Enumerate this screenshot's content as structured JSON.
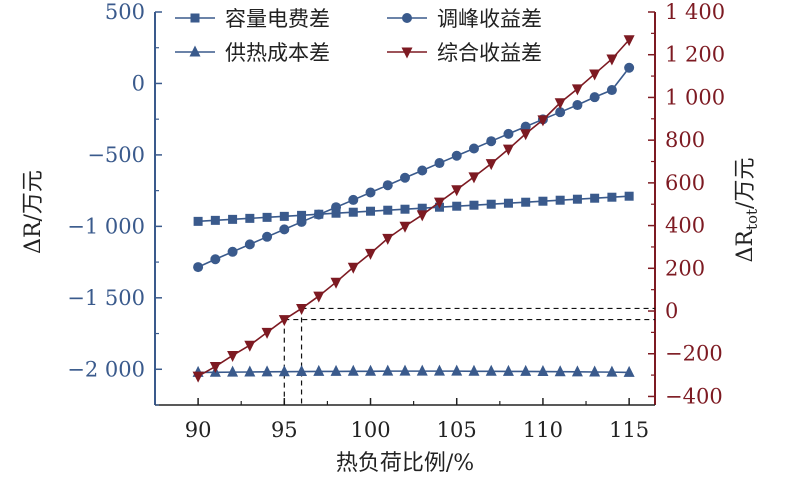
{
  "chart_data": {
    "type": "line",
    "xlabel": "热负荷比例/%",
    "ylabel_left": "ΔR/万元",
    "ylabel_right_main": "ΔR",
    "ylabel_right_sub": "tot",
    "ylabel_right_unit": "/万元",
    "x": [
      90,
      91,
      92,
      93,
      94,
      95,
      96,
      97,
      98,
      99,
      100,
      101,
      102,
      103,
      104,
      105,
      106,
      107,
      108,
      109,
      110,
      111,
      112,
      113,
      114,
      115
    ],
    "xlim": [
      87.5,
      116.5
    ],
    "xticks": [
      90,
      95,
      100,
      105,
      110,
      115
    ],
    "xtick_labels": [
      "90",
      "95",
      "100",
      "105",
      "110",
      "115"
    ],
    "ylim_left": [
      -2250,
      500
    ],
    "yticks_left": [
      500,
      0,
      -500,
      -1000,
      -1500,
      -2000
    ],
    "ytick_labels_left": [
      "500",
      "0",
      "−500",
      "−1 000",
      "−1 500",
      "−2 000"
    ],
    "ylim_right": [
      -440,
      1400
    ],
    "yticks_right": [
      1400,
      1200,
      1000,
      800,
      600,
      400,
      200,
      0,
      -200,
      -400
    ],
    "ytick_labels_right": [
      "1 400",
      "1 200",
      "1 000",
      "800",
      "600",
      "400",
      "200",
      "0",
      "−200",
      "−400"
    ],
    "series": [
      {
        "name": "容量电费差",
        "axis": "left",
        "marker": "square",
        "color": "#3a5a8c",
        "values": [
          -965,
          -958,
          -951,
          -944,
          -937,
          -930,
          -923,
          -915,
          -908,
          -901,
          -894,
          -887,
          -880,
          -873,
          -866,
          -859,
          -852,
          -845,
          -838,
          -831,
          -824,
          -817,
          -810,
          -803,
          -796,
          -789
        ]
      },
      {
        "name": "调峰收益差",
        "axis": "left",
        "marker": "circle",
        "color": "#3a5a8c",
        "values": [
          -1285,
          -1230,
          -1178,
          -1126,
          -1073,
          -1021,
          -969,
          -918,
          -866,
          -815,
          -763,
          -712,
          -660,
          -609,
          -557,
          -506,
          -455,
          -404,
          -353,
          -302,
          -251,
          -201,
          -151,
          -96,
          -46,
          110
        ]
      },
      {
        "name": "供热成本差",
        "axis": "left",
        "marker": "triangle-up",
        "color": "#3a5a8c",
        "values": [
          -2022,
          -2021,
          -2020,
          -2019,
          -2018,
          -2017,
          -2016,
          -2015,
          -2015,
          -2014,
          -2014,
          -2013,
          -2013,
          -2013,
          -2013,
          -2013,
          -2014,
          -2014,
          -2015,
          -2015,
          -2016,
          -2017,
          -2018,
          -2019,
          -2020,
          -2022
        ]
      },
      {
        "name": "综合收益差",
        "axis": "right",
        "marker": "triangle-down",
        "color": "#7d1a22",
        "values": [
          -305,
          -260,
          -208,
          -160,
          -100,
          -40,
          12,
          70,
          135,
          205,
          270,
          340,
          397,
          450,
          510,
          568,
          628,
          690,
          758,
          830,
          895,
          975,
          1040,
          1110,
          1180,
          1270
        ]
      }
    ],
    "annotations": [
      {
        "type": "guide",
        "x": 95,
        "y_right": -40
      },
      {
        "type": "guide",
        "x": 96,
        "y_right": 12
      }
    ]
  },
  "colors": {
    "left_axis": "#3a5a8c",
    "right_axis": "#7d1a22",
    "frame": "#222222"
  }
}
